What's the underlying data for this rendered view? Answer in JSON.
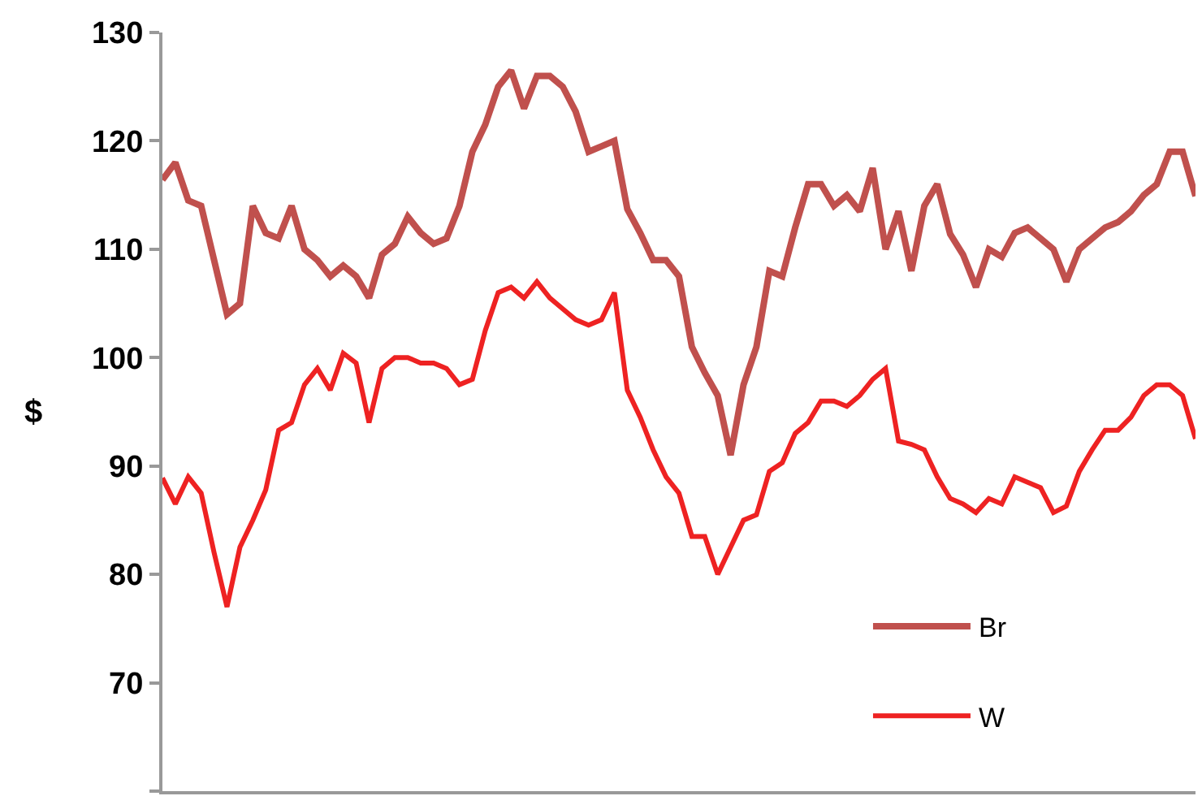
{
  "chart_data": {
    "type": "line",
    "ylabel": "$",
    "categories": [
      null,
      null,
      null,
      null,
      null,
      null,
      null,
      null,
      null,
      null,
      null,
      null,
      null,
      null,
      null,
      null,
      null,
      null,
      null,
      null,
      null,
      null,
      null,
      null,
      null,
      null,
      null,
      null,
      null,
      null,
      null,
      null,
      null,
      null,
      null,
      null,
      null,
      null,
      null,
      null,
      null,
      null,
      null,
      null,
      null,
      null,
      null,
      null,
      null,
      null,
      null,
      null,
      null,
      null,
      null,
      null,
      null,
      null,
      null,
      null,
      null,
      null,
      null,
      null,
      null,
      null,
      null,
      null,
      null,
      null,
      null,
      null,
      null,
      null,
      null,
      null,
      null,
      null,
      null,
      null,
      null
    ],
    "series": [
      {
        "name": "Br",
        "color": "#c0504d",
        "values": [
          116.4,
          118,
          114.5,
          114,
          109,
          104,
          105,
          114,
          111.5,
          111,
          114,
          110,
          109,
          107.5,
          108.5,
          107.5,
          105.5,
          109.5,
          110.5,
          113,
          111.5,
          110.5,
          111,
          114,
          119,
          121.5,
          125,
          126.5,
          123,
          126,
          126,
          125,
          122.7,
          119,
          119.5,
          120,
          113.7,
          111.5,
          109,
          109,
          107.5,
          101,
          98.6,
          96.5,
          91,
          97.5,
          101,
          108,
          107.5,
          112,
          116,
          116,
          114,
          115,
          113.5,
          117.5,
          110,
          113.5,
          108,
          114,
          116,
          111.4,
          109.5,
          106.5,
          110,
          109.3,
          111.5,
          112,
          111,
          110,
          107,
          110,
          111,
          112,
          112.5,
          113.5,
          115,
          116,
          119,
          119,
          114.9
        ]
      },
      {
        "name": "W",
        "color": "#ee2222",
        "values": [
          88.9,
          86.5,
          89,
          87.5,
          82,
          77,
          82.5,
          85,
          87.8,
          93.3,
          94,
          97.5,
          99,
          97,
          100.4,
          99.5,
          94,
          99,
          100,
          100,
          99.5,
          99.5,
          99,
          97.5,
          98,
          102.5,
          106,
          106.5,
          105.5,
          107,
          105.5,
          104.5,
          103.5,
          103,
          103.5,
          106,
          97,
          94.5,
          91.5,
          89,
          87.5,
          83.5,
          83.5,
          80,
          82.5,
          85,
          85.5,
          89.5,
          90.3,
          93,
          94,
          96,
          96,
          95.5,
          96.5,
          98,
          99,
          92.3,
          92,
          91.5,
          89,
          87,
          86.5,
          85.7,
          87,
          86.5,
          89,
          88.5,
          88,
          85.7,
          86.3,
          89.5,
          91.5,
          93.3,
          93.3,
          94.5,
          96.5,
          97.5,
          97.5,
          96.5,
          92.5
        ]
      }
    ],
    "ylim": [
      60,
      130
    ],
    "yticks": [
      {
        "value": 60,
        "label": null
      },
      70,
      80,
      90,
      100,
      110,
      120,
      130
    ],
    "legend": "bottom right",
    "marker": "none",
    "line_style": "solid"
  }
}
